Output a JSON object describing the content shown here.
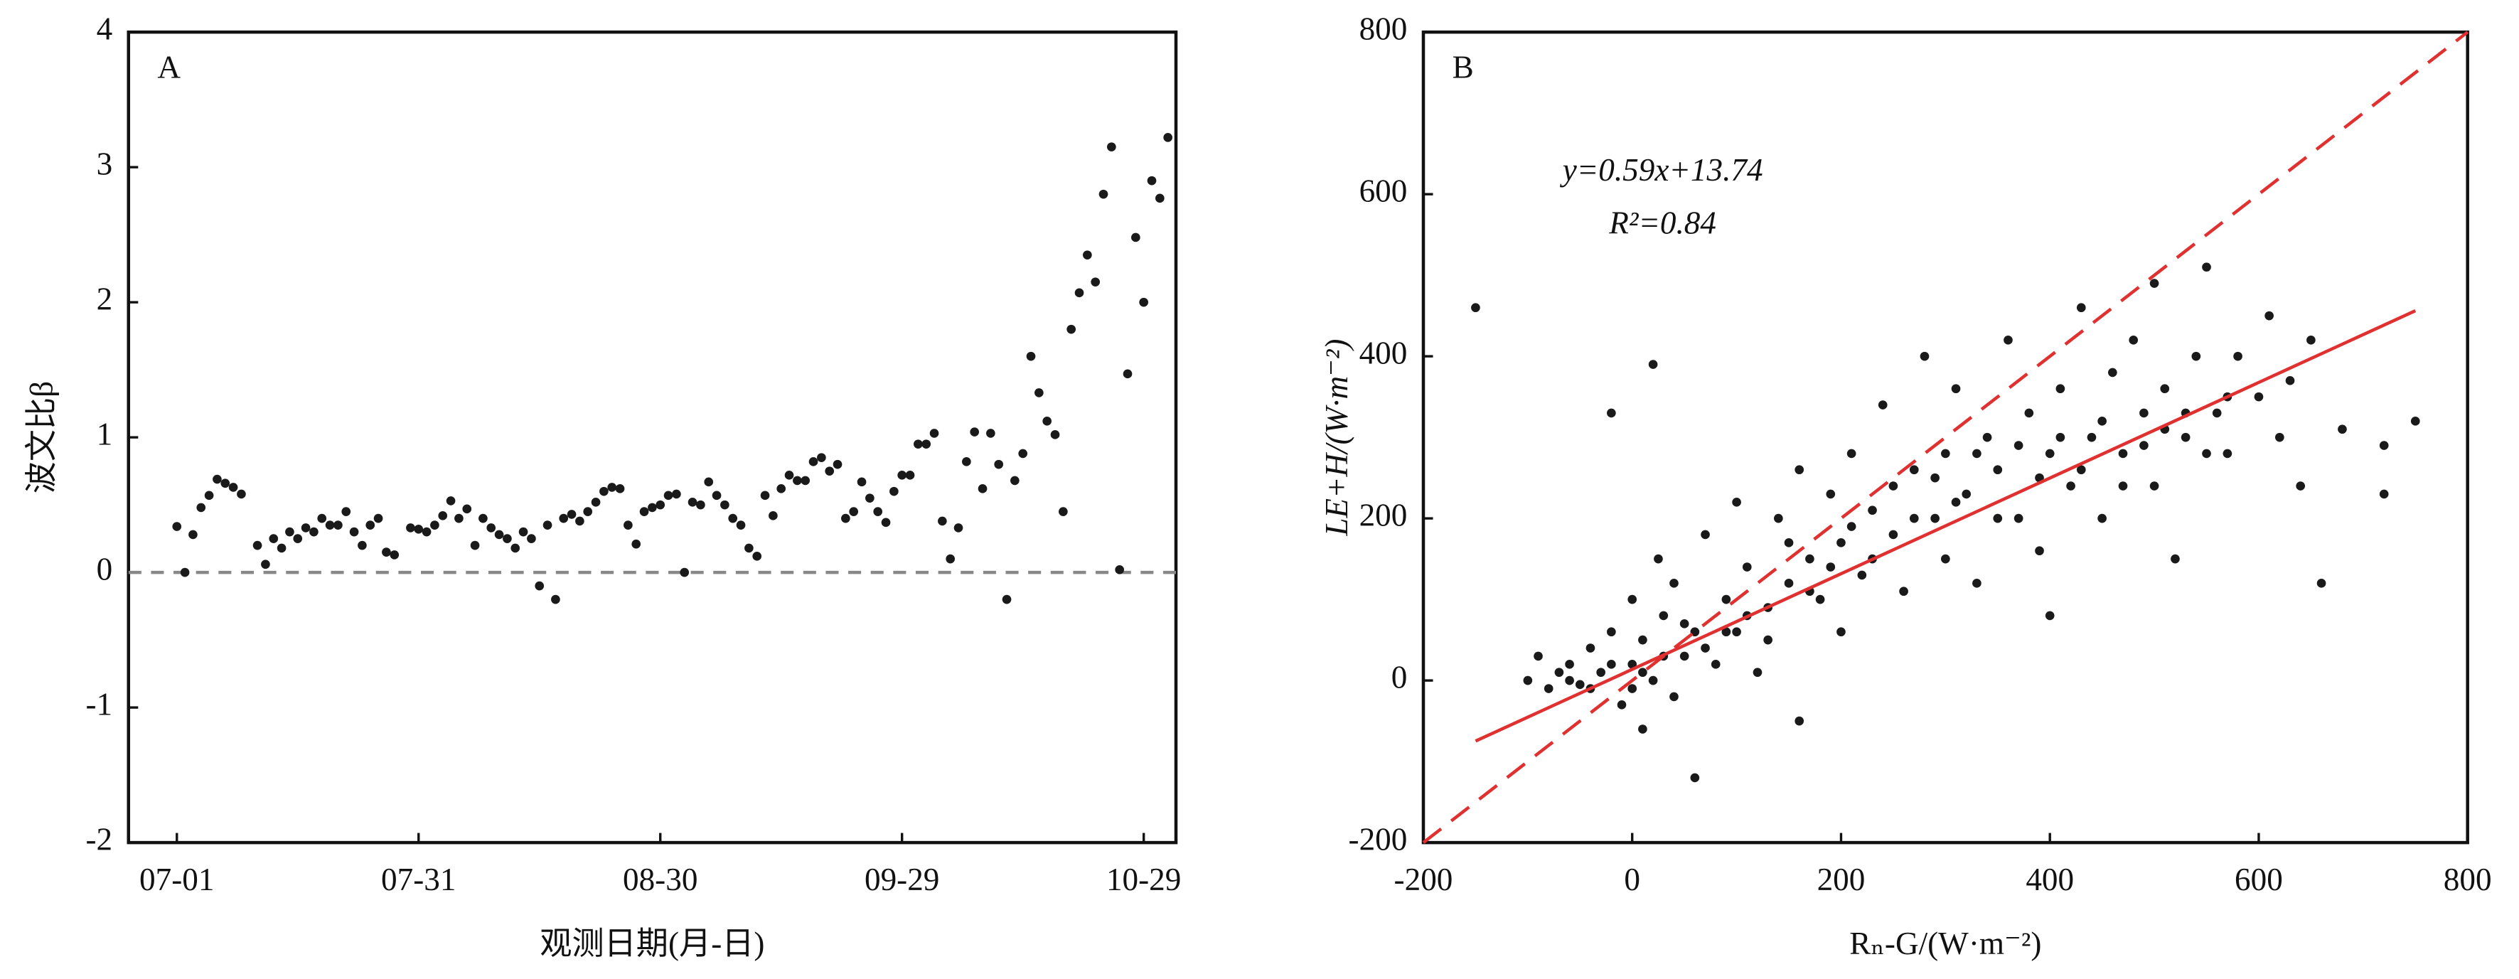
{
  "chart_data": [
    {
      "type": "scatter",
      "panel_label": "A",
      "ylabel": "波文比β",
      "xlabel": "观测日期(月-日)",
      "x": [
        "07-01",
        "07-02",
        "07-03",
        "07-04",
        "07-05",
        "07-06",
        "07-07",
        "07-08",
        "07-09",
        "07-11",
        "07-12",
        "07-13",
        "07-14",
        "07-15",
        "07-16",
        "07-17",
        "07-18",
        "07-19",
        "07-20",
        "07-21",
        "07-22",
        "07-23",
        "07-24",
        "07-25",
        "07-26",
        "07-27",
        "07-28",
        "07-30",
        "07-31",
        "08-01",
        "08-02",
        "08-03",
        "08-04",
        "08-05",
        "08-06",
        "08-07",
        "08-08",
        "08-09",
        "08-10",
        "08-11",
        "08-12",
        "08-13",
        "08-14",
        "08-15",
        "08-16",
        "08-17",
        "08-18",
        "08-19",
        "08-20",
        "08-21",
        "08-22",
        "08-23",
        "08-24",
        "08-25",
        "08-26",
        "08-27",
        "08-28",
        "08-29",
        "08-30",
        "08-31",
        "09-01",
        "09-02",
        "09-03",
        "09-04",
        "09-05",
        "09-06",
        "09-07",
        "09-08",
        "09-09",
        "09-10",
        "09-11",
        "09-12",
        "09-13",
        "09-14",
        "09-15",
        "09-16",
        "09-17",
        "09-18",
        "09-19",
        "09-20",
        "09-21",
        "09-22",
        "09-23",
        "09-24",
        "09-25",
        "09-26",
        "09-27",
        "09-28",
        "09-29",
        "09-30",
        "10-01",
        "10-02",
        "10-03",
        "10-04",
        "10-05",
        "10-06",
        "10-07",
        "10-08",
        "10-09",
        "10-10",
        "10-11",
        "10-12",
        "10-13",
        "10-14",
        "10-15",
        "10-16",
        "10-17",
        "10-18",
        "10-19",
        "10-20",
        "10-21",
        "10-22",
        "10-23",
        "10-24",
        "10-25",
        "10-26",
        "10-27",
        "10-28",
        "10-29",
        "10-30",
        "10-31",
        "11-01"
      ],
      "values": [
        0.34,
        0.0,
        0.28,
        0.48,
        0.57,
        0.69,
        0.66,
        0.63,
        0.58,
        0.2,
        0.06,
        0.25,
        0.18,
        0.3,
        0.25,
        0.33,
        0.3,
        0.4,
        0.35,
        0.35,
        0.45,
        0.3,
        0.2,
        0.35,
        0.4,
        0.15,
        0.13,
        0.33,
        0.32,
        0.3,
        0.35,
        0.42,
        0.53,
        0.4,
        0.47,
        0.2,
        0.4,
        0.33,
        0.28,
        0.25,
        0.18,
        0.3,
        0.25,
        -0.1,
        0.35,
        -0.2,
        0.4,
        0.43,
        0.38,
        0.45,
        0.52,
        0.6,
        0.63,
        0.62,
        0.35,
        0.21,
        0.45,
        0.48,
        0.5,
        0.57,
        0.58,
        0.0,
        0.52,
        0.5,
        0.67,
        0.57,
        0.5,
        0.4,
        0.35,
        0.18,
        0.12,
        0.57,
        0.42,
        0.62,
        0.72,
        0.68,
        0.68,
        0.82,
        0.85,
        0.75,
        0.8,
        0.4,
        0.45,
        0.67,
        0.55,
        0.45,
        0.37,
        0.6,
        0.72,
        0.72,
        0.95,
        0.95,
        1.03,
        0.38,
        0.1,
        0.33,
        0.82,
        1.04,
        0.62,
        1.03,
        0.8,
        -0.2,
        0.68,
        0.88,
        1.6,
        1.33,
        1.12,
        1.02,
        0.45,
        1.8,
        2.07,
        2.35,
        2.15,
        2.8,
        3.15,
        0.02,
        1.47,
        2.48,
        2.0,
        2.9,
        2.77,
        3.22
      ],
      "color": "#1a1a1a",
      "xlim": [
        "06-25",
        "11-02"
      ],
      "xticks": [
        "07-01",
        "07-31",
        "08-30",
        "09-29",
        "10-29"
      ],
      "ylim": [
        -2,
        4
      ],
      "yticks": [
        -2,
        -1,
        0,
        1,
        2,
        3,
        4
      ],
      "hline": {
        "value": 0,
        "color": "#888888",
        "dash": true
      }
    },
    {
      "type": "scatter",
      "panel_label": "B",
      "ylabel": "LE+H/(W·m⁻²)",
      "xlabel": "Rₙ-G/(W·m⁻²)",
      "annotations": [
        "y=0.59x+13.74",
        "R²=0.84"
      ],
      "x": [
        -150,
        -100,
        -90,
        -80,
        -70,
        -60,
        -50,
        -40,
        -30,
        -20,
        -10,
        0,
        0,
        10,
        10,
        20,
        20,
        25,
        30,
        40,
        40,
        50,
        -20,
        60,
        60,
        70,
        80,
        90,
        100,
        100,
        110,
        120,
        130,
        140,
        150,
        160,
        160,
        170,
        180,
        190,
        200,
        200,
        210,
        220,
        230,
        240,
        250,
        260,
        270,
        280,
        290,
        300,
        300,
        310,
        320,
        330,
        340,
        350,
        360,
        370,
        380,
        390,
        400,
        400,
        410,
        420,
        430,
        440,
        450,
        460,
        470,
        480,
        490,
        500,
        500,
        510,
        520,
        530,
        540,
        550,
        560,
        570,
        580,
        600,
        610,
        620,
        630,
        640,
        650,
        660,
        680,
        720,
        720,
        750,
        -60,
        -40,
        -20,
        0,
        10,
        30,
        50,
        70,
        90,
        110,
        130,
        150,
        170,
        190,
        210,
        230,
        250,
        270,
        290,
        310,
        330,
        350,
        370,
        390,
        410,
        430,
        450,
        470,
        490,
        510,
        530,
        550,
        570
      ],
      "values": [
        460,
        0,
        30,
        -10,
        10,
        20,
        -5,
        40,
        10,
        60,
        -30,
        20,
        100,
        -60,
        50,
        390,
        0,
        150,
        80,
        -20,
        120,
        30,
        330,
        -120,
        60,
        180,
        20,
        100,
        60,
        220,
        140,
        10,
        90,
        200,
        120,
        -50,
        260,
        150,
        100,
        230,
        170,
        60,
        280,
        130,
        210,
        340,
        180,
        110,
        260,
        400,
        200,
        280,
        150,
        360,
        230,
        120,
        300,
        260,
        420,
        200,
        330,
        160,
        280,
        80,
        360,
        240,
        460,
        300,
        200,
        380,
        280,
        420,
        330,
        490,
        240,
        360,
        150,
        300,
        400,
        510,
        330,
        280,
        400,
        350,
        450,
        300,
        370,
        240,
        420,
        120,
        310,
        290,
        230,
        320,
        0,
        -10,
        20,
        -10,
        10,
        30,
        70,
        40,
        60,
        80,
        50,
        170,
        110,
        140,
        190,
        150,
        240,
        200,
        250,
        220,
        280,
        200,
        290,
        250,
        300,
        260,
        320,
        240,
        290,
        310,
        330,
        280,
        350
      ],
      "color": "#1a1a1a",
      "lines": [
        {
          "x": [
            -200,
            800
          ],
          "values": [
            -200,
            800
          ],
          "color": "#e03030",
          "dash": true
        },
        {
          "x": [
            -150,
            750
          ],
          "values": [
            -74.76,
            456.24
          ],
          "color": "#e03030",
          "dash": false
        }
      ],
      "xlim": [
        -200,
        800
      ],
      "xticks": [
        -200,
        0,
        200,
        400,
        600,
        800
      ],
      "ylim": [
        -200,
        800
      ],
      "yticks": [
        -200,
        0,
        200,
        400,
        600,
        800
      ]
    }
  ]
}
